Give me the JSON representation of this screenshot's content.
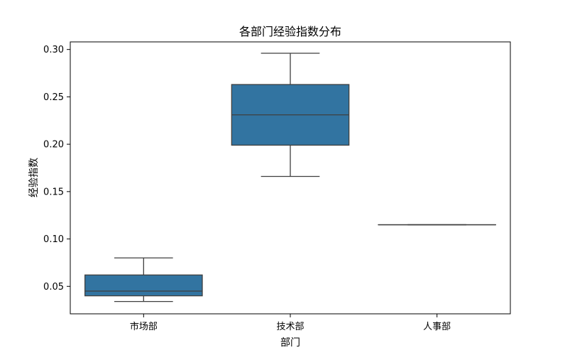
{
  "chart_data": {
    "type": "box",
    "title": "各部门经验指数分布",
    "xlabel": "部门",
    "ylabel": "经验指数",
    "categories": [
      "市场部",
      "技术部",
      "人事部"
    ],
    "boxes": [
      {
        "category": "市场部",
        "whisker_low": 0.034,
        "q1": 0.04,
        "median": 0.045,
        "q3": 0.062,
        "whisker_high": 0.08
      },
      {
        "category": "技术部",
        "whisker_low": 0.166,
        "q1": 0.199,
        "median": 0.231,
        "q3": 0.263,
        "whisker_high": 0.296
      },
      {
        "category": "人事部",
        "whisker_low": 0.115,
        "q1": 0.115,
        "median": 0.115,
        "q3": 0.115,
        "whisker_high": 0.115
      }
    ],
    "ylim": [
      0.021,
      0.308
    ],
    "yticks": [
      0.05,
      0.1,
      0.15,
      0.2,
      0.25,
      0.3
    ],
    "ytick_labels": [
      "0.05",
      "0.10",
      "0.15",
      "0.20",
      "0.25",
      "0.30"
    ],
    "grid": false,
    "legend": "none",
    "colors": {
      "box_fill": "#3274a1",
      "line": "#3f3f3f",
      "axes": "#000000"
    }
  }
}
